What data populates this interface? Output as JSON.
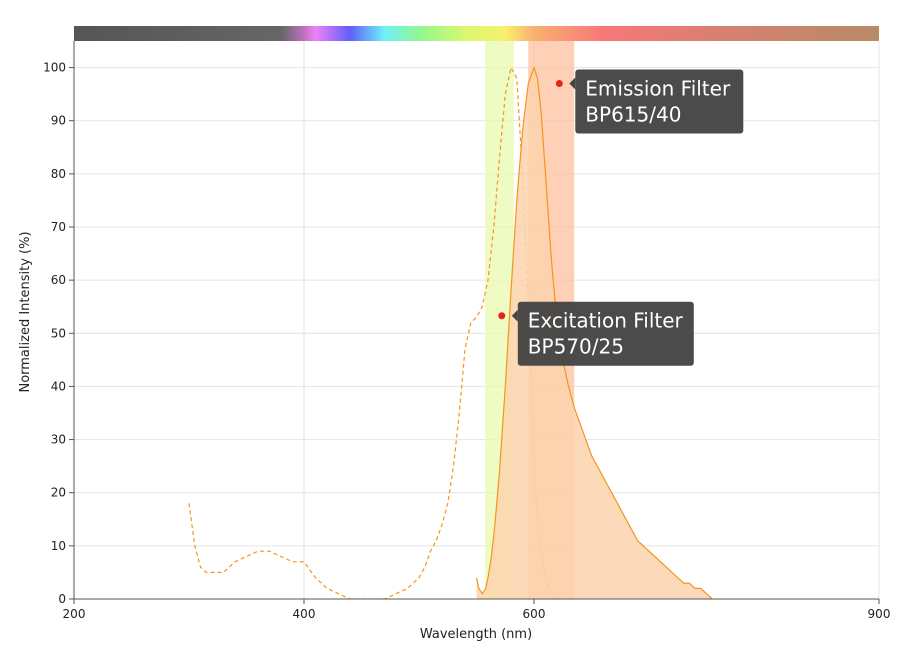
{
  "chart_data": {
    "type": "line",
    "xlabel": "Wavelength (nm)",
    "ylabel": "Normalized Intensity (%)",
    "xlim": [
      200,
      900
    ],
    "ylim": [
      0,
      105
    ],
    "x_ticks": [
      "200",
      "400",
      "600",
      "900"
    ],
    "y_ticks": [
      "0",
      "10",
      "20",
      "30",
      "40",
      "50",
      "60",
      "70",
      "80",
      "90",
      "100"
    ],
    "grid": true,
    "series": [
      {
        "style": "dashed",
        "color": "#f7941d",
        "x": [
          300,
          305,
          310,
          315,
          320,
          330,
          340,
          350,
          360,
          370,
          380,
          390,
          400,
          410,
          420,
          430,
          440,
          450,
          460,
          470,
          480,
          490,
          500,
          505,
          510,
          515,
          520,
          525,
          530,
          535,
          540,
          545,
          550,
          555,
          560,
          565,
          570,
          575,
          580,
          585,
          590,
          595,
          600,
          605,
          610,
          615,
          620,
          625,
          630,
          635,
          640,
          645,
          650
        ],
        "y": [
          18,
          10,
          6,
          5,
          5,
          5,
          7,
          8,
          9,
          9,
          8,
          7,
          7,
          4,
          2,
          1,
          0,
          0,
          0,
          0,
          1,
          2,
          4,
          6,
          9,
          11,
          14,
          18,
          25,
          35,
          47,
          52,
          53,
          55,
          60,
          70,
          83,
          95,
          100,
          98,
          80,
          55,
          25,
          10,
          4,
          1,
          0,
          0,
          0,
          0,
          0,
          0,
          0
        ]
      },
      {
        "style": "filled",
        "color": "#f7941d",
        "fill": "#fcd3ad",
        "x": [
          550,
          552,
          555,
          558,
          560,
          563,
          566,
          570,
          575,
          580,
          585,
          590,
          595,
          600,
          603,
          606,
          610,
          615,
          620,
          625,
          630,
          635,
          640,
          645,
          650,
          655,
          660,
          665,
          670,
          675,
          680,
          685,
          690,
          695,
          700,
          705,
          710,
          715,
          720,
          725,
          730,
          735,
          740,
          745,
          750,
          755
        ],
        "y": [
          4,
          2,
          1,
          2,
          4,
          8,
          14,
          24,
          40,
          58,
          75,
          88,
          97,
          100,
          98,
          92,
          80,
          64,
          52,
          45,
          40,
          36,
          33,
          30,
          27,
          25,
          23,
          21,
          19,
          17,
          15,
          13,
          11,
          10,
          9,
          8,
          7,
          6,
          5,
          4,
          3,
          3,
          2,
          2,
          1,
          0
        ]
      }
    ],
    "bands": [
      {
        "name": "Excitation Filter",
        "center": 570,
        "width": 25,
        "color": "#e8fbb0"
      },
      {
        "name": "Emission Filter",
        "center": 615,
        "width": 40,
        "color": "#fdc19f"
      }
    ],
    "annotations": [
      {
        "id": "emission",
        "lines": [
          "Emission Filter",
          "BP615/40"
        ],
        "x": 622,
        "y": 97
      },
      {
        "id": "excitation",
        "lines": [
          "Excitation Filter",
          "BP570/25"
        ],
        "x": 572,
        "y": 53.3
      }
    ],
    "spectrum_bar": {
      "stops": [
        {
          "nm": 200,
          "color": "#555555"
        },
        {
          "nm": 380,
          "color": "#666666"
        },
        {
          "nm": 400,
          "color": "#c070c0"
        },
        {
          "nm": 410,
          "color": "#f080f8"
        },
        {
          "nm": 440,
          "color": "#6060f8"
        },
        {
          "nm": 470,
          "color": "#70f0f8"
        },
        {
          "nm": 500,
          "color": "#90f890"
        },
        {
          "nm": 540,
          "color": "#d8f870"
        },
        {
          "nm": 575,
          "color": "#f8f070"
        },
        {
          "nm": 600,
          "color": "#f8b070"
        },
        {
          "nm": 660,
          "color": "#f87878"
        },
        {
          "nm": 760,
          "color": "#d88070"
        },
        {
          "nm": 900,
          "color": "#b88a68"
        }
      ]
    }
  }
}
